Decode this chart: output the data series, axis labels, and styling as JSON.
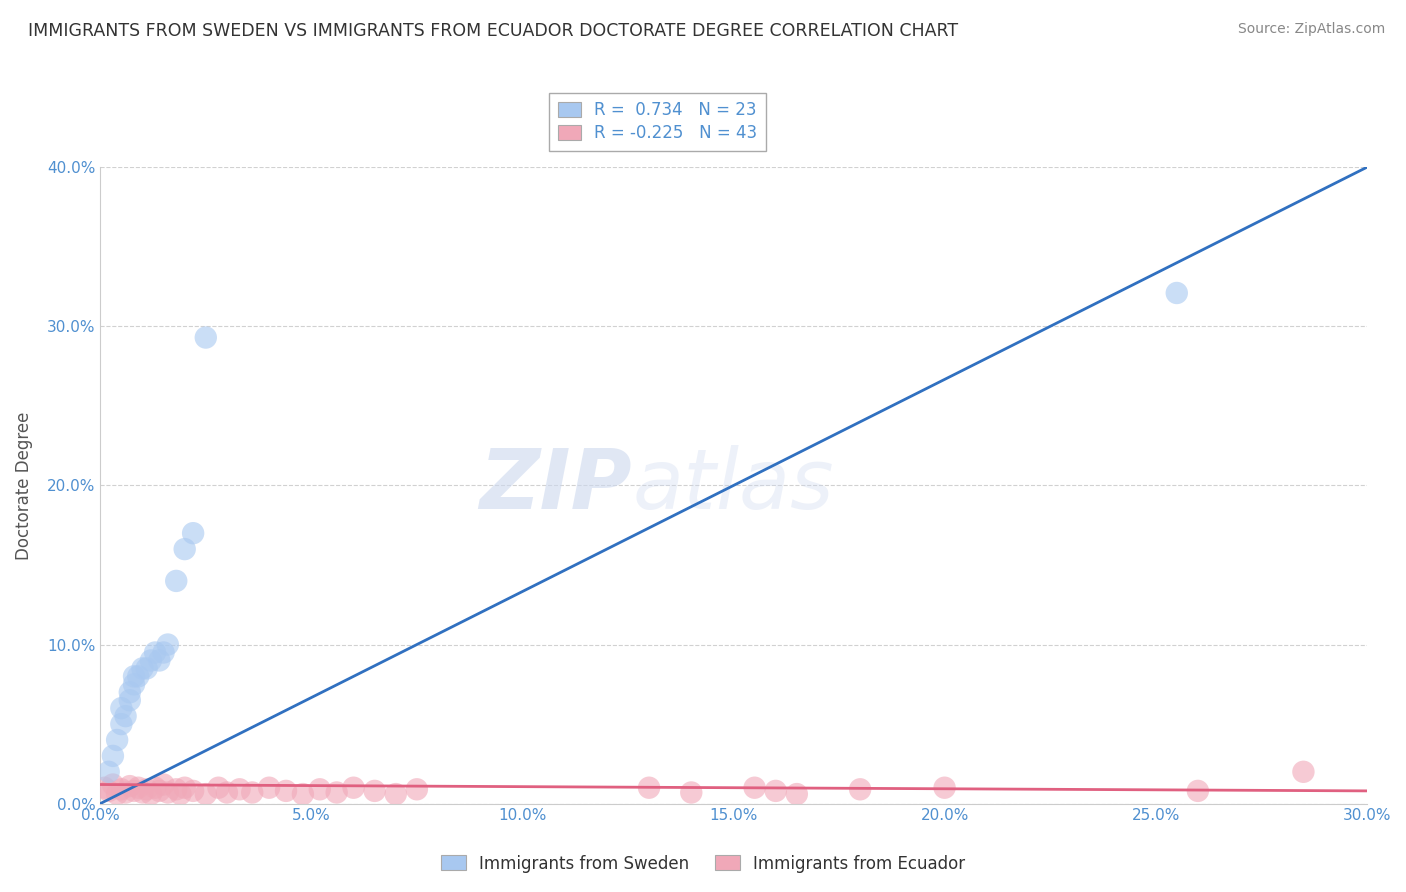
{
  "title": "IMMIGRANTS FROM SWEDEN VS IMMIGRANTS FROM ECUADOR DOCTORATE DEGREE CORRELATION CHART",
  "source": "Source: ZipAtlas.com",
  "ylabel": "Doctorate Degree",
  "xlim": [
    0.0,
    0.3
  ],
  "ylim": [
    0.0,
    0.4
  ],
  "xticks": [
    0.0,
    0.05,
    0.1,
    0.15,
    0.2,
    0.25,
    0.3
  ],
  "yticks": [
    0.0,
    0.1,
    0.2,
    0.3,
    0.4
  ],
  "sweden_color": "#a8c8f0",
  "ecuador_color": "#f0a8b8",
  "sweden_line_color": "#3070c0",
  "ecuador_line_color": "#e06080",
  "sweden_R": 0.734,
  "sweden_N": 23,
  "ecuador_R": -0.225,
  "ecuador_N": 43,
  "watermark_zip": "ZIP",
  "watermark_atlas": "atlas",
  "legend_label_sweden": "Immigrants from Sweden",
  "legend_label_ecuador": "Immigrants from Ecuador",
  "sweden_x": [
    0.002,
    0.003,
    0.004,
    0.005,
    0.005,
    0.006,
    0.007,
    0.007,
    0.008,
    0.008,
    0.009,
    0.01,
    0.011,
    0.012,
    0.013,
    0.014,
    0.015,
    0.016,
    0.018,
    0.02,
    0.022,
    0.025,
    0.255
  ],
  "sweden_y": [
    0.02,
    0.03,
    0.04,
    0.05,
    0.06,
    0.055,
    0.065,
    0.07,
    0.075,
    0.08,
    0.08,
    0.085,
    0.085,
    0.09,
    0.095,
    0.09,
    0.095,
    0.1,
    0.14,
    0.16,
    0.17,
    0.293,
    0.321
  ],
  "ecuador_x": [
    0.001,
    0.002,
    0.003,
    0.004,
    0.005,
    0.006,
    0.007,
    0.008,
    0.009,
    0.01,
    0.011,
    0.012,
    0.013,
    0.014,
    0.015,
    0.016,
    0.018,
    0.019,
    0.02,
    0.022,
    0.025,
    0.028,
    0.03,
    0.033,
    0.036,
    0.04,
    0.044,
    0.048,
    0.052,
    0.056,
    0.06,
    0.065,
    0.07,
    0.075,
    0.13,
    0.14,
    0.155,
    0.16,
    0.165,
    0.18,
    0.2,
    0.26,
    0.285
  ],
  "ecuador_y": [
    0.01,
    0.008,
    0.012,
    0.006,
    0.009,
    0.007,
    0.011,
    0.008,
    0.01,
    0.007,
    0.009,
    0.006,
    0.01,
    0.008,
    0.012,
    0.007,
    0.009,
    0.006,
    0.01,
    0.008,
    0.006,
    0.01,
    0.007,
    0.009,
    0.007,
    0.01,
    0.008,
    0.006,
    0.009,
    0.007,
    0.01,
    0.008,
    0.006,
    0.009,
    0.01,
    0.007,
    0.01,
    0.008,
    0.006,
    0.009,
    0.01,
    0.008,
    0.02
  ],
  "sweden_line_x": [
    0.0,
    0.3
  ],
  "sweden_line_y": [
    0.0,
    0.4
  ],
  "ecuador_line_x": [
    0.0,
    0.3
  ],
  "ecuador_line_y": [
    0.012,
    0.008
  ]
}
